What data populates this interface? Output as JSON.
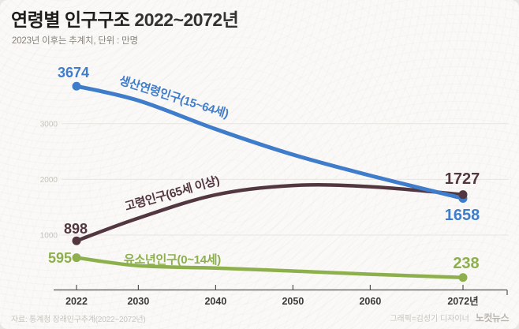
{
  "header": {
    "title_main": "연령별 인구구조",
    "title_range": "2022~2072년",
    "subtitle": "2023년 이후는 추계치, 단위 : 만명"
  },
  "footer": {
    "source": "자료: 통계청 장래인구추계(2022~2072년)",
    "credit": "그래픽=김성기 디자이너",
    "brand": "노컷뉴스"
  },
  "chart_data": {
    "type": "line",
    "title": "연령별 인구구조 2022~2072년",
    "unit": "만명",
    "xlabel": "",
    "ylabel": "",
    "x": [
      2022,
      2030,
      2040,
      2050,
      2060,
      2072
    ],
    "x_tick_labels": [
      "2022",
      "2030",
      "2040",
      "2050",
      "2060",
      "2072년"
    ],
    "xlim": [
      2022,
      2072
    ],
    "y_ticks": [
      1000,
      2000,
      3000
    ],
    "y_tick_labels": [
      "1000",
      "2000",
      "3000"
    ],
    "ylim": [
      0,
      3900
    ],
    "grid": true,
    "legend_position": "inline-along-lines",
    "series": [
      {
        "name": "생산연령인구(15~64세)",
        "color": "#3f7cca",
        "values": [
          3674,
          3417,
          2903,
          2445,
          2069,
          1658
        ],
        "start_label": "3674",
        "end_label": "1658"
      },
      {
        "name": "고령인구(65세 이상)",
        "color": "#523741",
        "values": [
          898,
          1305,
          1724,
          1891,
          1870,
          1727
        ],
        "start_label": "898",
        "end_label": "1727"
      },
      {
        "name": "유소년인구(0~14세)",
        "color": "#8db04d",
        "values": [
          595,
          450,
          408,
          355,
          298,
          238
        ],
        "start_label": "595",
        "end_label": "238"
      }
    ]
  }
}
